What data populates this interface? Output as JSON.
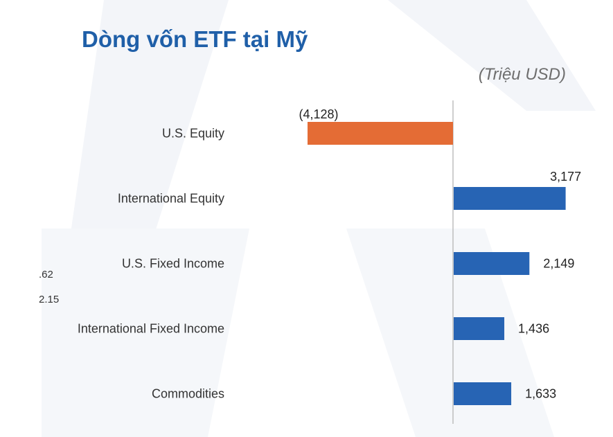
{
  "header": {
    "title": "Dòng vốn ETF tại Mỹ",
    "unit": "(Triệu USD)"
  },
  "side_fragments": [
    ".62",
    "2.15"
  ],
  "colors": {
    "title": "#1f5fa8",
    "positive": "#2764b4",
    "negative": "#e46c35",
    "axis": "#bdbdbd"
  },
  "chart_data": {
    "type": "bar",
    "orientation": "horizontal",
    "title": "Dòng vốn ETF tại Mỹ",
    "unit": "(Triệu USD)",
    "categories": [
      "U.S. Equity",
      "International Equity",
      "U.S. Fixed Income",
      "International Fixed Income",
      "Commodities"
    ],
    "values": [
      -4128,
      3177,
      2149,
      1436,
      1633
    ],
    "value_labels": [
      "(4,128)",
      "3,177",
      "2,149",
      "1,436",
      "1,633"
    ],
    "xlim": [
      -4128,
      3177
    ],
    "grid": false,
    "legend": "none"
  }
}
